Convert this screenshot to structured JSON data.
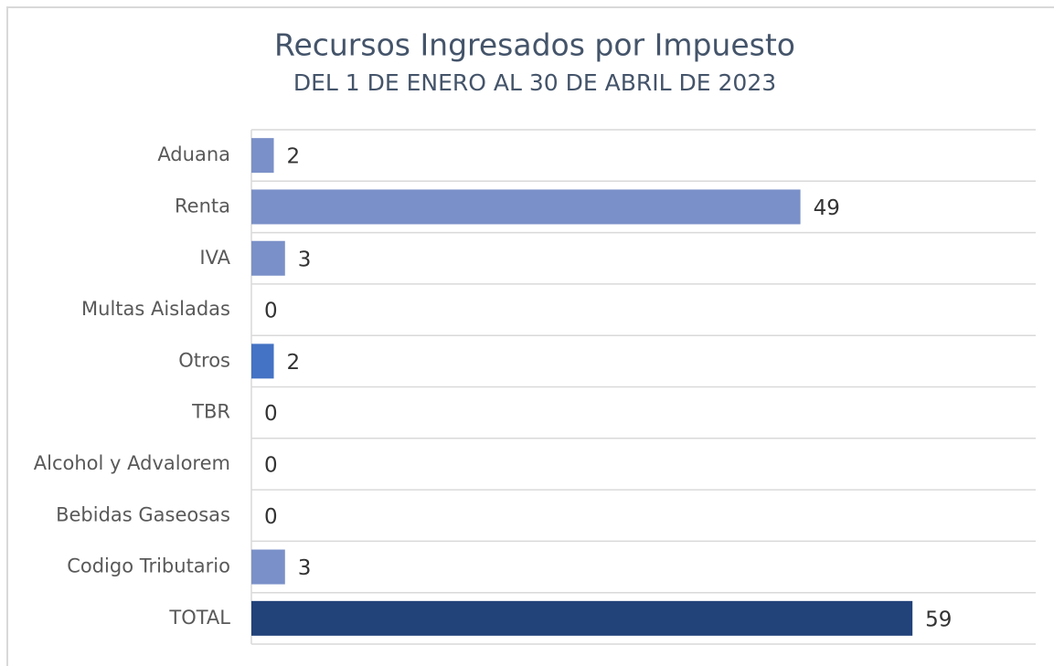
{
  "chart_data": {
    "type": "bar",
    "orientation": "horizontal",
    "title": "Recursos Ingresados por Impuesto",
    "subtitle": "DEL 1 DE ENERO AL 30 DE ABRIL DE 2023",
    "categories": [
      "Aduana",
      "Renta",
      "IVA",
      "Multas Aisladas",
      "Otros",
      "TBR",
      "Alcohol y Advalorem",
      "Bebidas Gaseosas",
      "Codigo Tributario",
      "TOTAL"
    ],
    "values": [
      2,
      49,
      3,
      0,
      2,
      0,
      0,
      0,
      3,
      59
    ],
    "colors": [
      "#7a90c8",
      "#7a90c8",
      "#7a90c8",
      "#7a90c8",
      "#4472c4",
      "#7a90c8",
      "#7a90c8",
      "#7a90c8",
      "#7a90c8",
      "#22427a"
    ],
    "xlim": [
      0,
      70
    ]
  }
}
